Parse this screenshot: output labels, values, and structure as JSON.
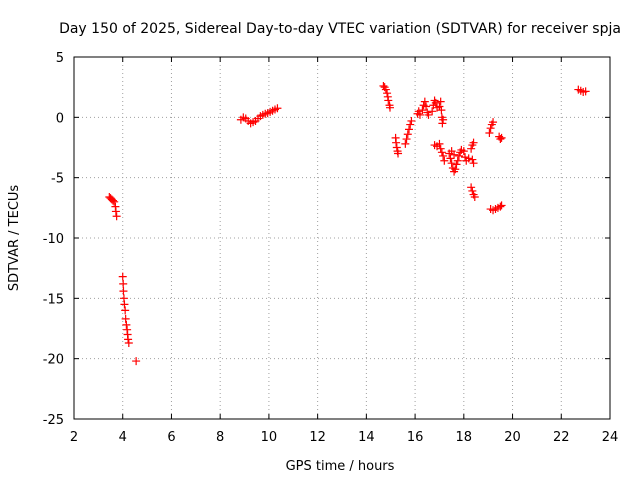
{
  "chart_data": {
    "type": "scatter",
    "title": "Day 150 of 2025, Sidereal Day-to-day VTEC variation (SDTVAR) for receiver spja",
    "xlabel": "GPS time / hours",
    "ylabel": "SDTVAR / TECUs",
    "xlim": [
      2,
      24
    ],
    "ylim": [
      -25,
      5
    ],
    "xticks": [
      2,
      4,
      6,
      8,
      10,
      12,
      14,
      16,
      18,
      20,
      22,
      24
    ],
    "yticks": [
      -25,
      -20,
      -15,
      -10,
      -5,
      0,
      5
    ],
    "xtick_labels": [
      "2",
      "4",
      "6",
      "8",
      "10",
      "12",
      "14",
      "16",
      "18",
      "20",
      "22",
      "24"
    ],
    "ytick_labels": [
      "-25",
      "-20",
      "-15",
      "-10",
      "-5",
      "0",
      "5"
    ],
    "grid": true,
    "marker": "+",
    "color": "#ff0000",
    "series": [
      {
        "name": "SDTVAR",
        "points": [
          [
            3.45,
            -6.6
          ],
          [
            3.5,
            -6.7
          ],
          [
            3.55,
            -6.8
          ],
          [
            3.6,
            -6.9
          ],
          [
            3.65,
            -7.0
          ],
          [
            3.7,
            -7.4
          ],
          [
            3.72,
            -7.8
          ],
          [
            3.75,
            -8.2
          ],
          [
            4.0,
            -13.2
          ],
          [
            4.02,
            -13.8
          ],
          [
            4.03,
            -14.4
          ],
          [
            4.05,
            -15.0
          ],
          [
            4.07,
            -15.5
          ],
          [
            4.1,
            -16.0
          ],
          [
            4.12,
            -16.7
          ],
          [
            4.15,
            -17.2
          ],
          [
            4.18,
            -17.6
          ],
          [
            4.2,
            -18.0
          ],
          [
            4.22,
            -18.4
          ],
          [
            4.25,
            -18.7
          ],
          [
            4.55,
            -20.2
          ],
          [
            8.85,
            -0.2
          ],
          [
            8.95,
            0.0
          ],
          [
            9.05,
            -0.1
          ],
          [
            9.15,
            -0.3
          ],
          [
            9.25,
            -0.5
          ],
          [
            9.35,
            -0.4
          ],
          [
            9.45,
            -0.3
          ],
          [
            9.55,
            -0.1
          ],
          [
            9.65,
            0.1
          ],
          [
            9.75,
            0.2
          ],
          [
            9.85,
            0.3
          ],
          [
            9.95,
            0.35
          ],
          [
            10.05,
            0.45
          ],
          [
            10.15,
            0.55
          ],
          [
            10.25,
            0.65
          ],
          [
            10.35,
            0.75
          ],
          [
            14.7,
            2.6
          ],
          [
            14.75,
            2.5
          ],
          [
            14.8,
            2.3
          ],
          [
            14.85,
            2.0
          ],
          [
            14.88,
            1.7
          ],
          [
            14.9,
            1.4
          ],
          [
            14.95,
            1.0
          ],
          [
            14.97,
            0.8
          ],
          [
            15.2,
            -1.7
          ],
          [
            15.22,
            -2.1
          ],
          [
            15.25,
            -2.5
          ],
          [
            15.28,
            -2.8
          ],
          [
            15.3,
            -3.0
          ],
          [
            15.6,
            -2.2
          ],
          [
            15.65,
            -1.8
          ],
          [
            15.7,
            -1.4
          ],
          [
            15.75,
            -1.0
          ],
          [
            15.8,
            -0.6
          ],
          [
            15.85,
            -0.3
          ],
          [
            16.1,
            0.3
          ],
          [
            16.15,
            0.5
          ],
          [
            16.2,
            0.2
          ],
          [
            16.3,
            0.6
          ],
          [
            16.35,
            1.0
          ],
          [
            16.4,
            1.3
          ],
          [
            16.45,
            0.9
          ],
          [
            16.5,
            0.4
          ],
          [
            16.55,
            0.2
          ],
          [
            16.7,
            0.5
          ],
          [
            16.75,
            1.0
          ],
          [
            16.8,
            1.4
          ],
          [
            16.85,
            1.2
          ],
          [
            16.9,
            0.8
          ],
          [
            16.8,
            -2.3
          ],
          [
            16.9,
            -2.4
          ],
          [
            17.0,
            -2.2
          ],
          [
            17.0,
            0.9
          ],
          [
            17.05,
            1.3
          ],
          [
            17.08,
            0.6
          ],
          [
            17.1,
            0.0
          ],
          [
            17.12,
            -0.5
          ],
          [
            17.15,
            -0.2
          ],
          [
            17.05,
            -2.6
          ],
          [
            17.1,
            -2.9
          ],
          [
            17.15,
            -3.2
          ],
          [
            17.2,
            -3.6
          ],
          [
            17.4,
            -3.0
          ],
          [
            17.45,
            -3.4
          ],
          [
            17.5,
            -3.8
          ],
          [
            17.55,
            -4.2
          ],
          [
            17.6,
            -4.5
          ],
          [
            17.65,
            -4.3
          ],
          [
            17.7,
            -3.9
          ],
          [
            17.75,
            -3.6
          ],
          [
            17.8,
            -3.2
          ],
          [
            17.85,
            -2.9
          ],
          [
            17.9,
            -2.7
          ],
          [
            17.5,
            -2.8
          ],
          [
            17.6,
            -3.1
          ],
          [
            18.0,
            -2.8
          ],
          [
            18.05,
            -3.3
          ],
          [
            18.1,
            -3.6
          ],
          [
            18.2,
            -3.4
          ],
          [
            18.3,
            -2.6
          ],
          [
            18.35,
            -2.3
          ],
          [
            18.4,
            -2.1
          ],
          [
            18.35,
            -3.5
          ],
          [
            18.4,
            -3.8
          ],
          [
            18.3,
            -5.8
          ],
          [
            18.35,
            -6.1
          ],
          [
            18.4,
            -6.4
          ],
          [
            18.45,
            -6.6
          ],
          [
            19.05,
            -1.3
          ],
          [
            19.1,
            -0.9
          ],
          [
            19.15,
            -0.6
          ],
          [
            19.2,
            -0.4
          ],
          [
            19.1,
            -7.6
          ],
          [
            19.2,
            -7.7
          ],
          [
            19.3,
            -7.6
          ],
          [
            19.4,
            -7.5
          ],
          [
            19.5,
            -7.4
          ],
          [
            19.55,
            -7.3
          ],
          [
            19.45,
            -1.6
          ],
          [
            19.5,
            -1.8
          ],
          [
            19.55,
            -1.7
          ],
          [
            22.7,
            2.3
          ],
          [
            22.8,
            2.2
          ],
          [
            22.9,
            2.1
          ],
          [
            23.0,
            2.15
          ]
        ]
      }
    ]
  }
}
